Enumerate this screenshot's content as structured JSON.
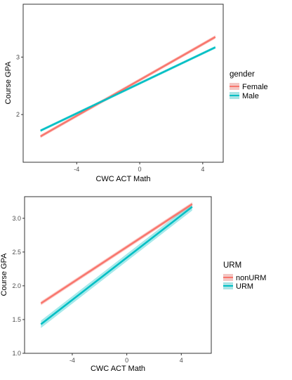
{
  "chart_data": [
    {
      "type": "line",
      "xlabel": "CWC ACT Math",
      "ylabel": "Course GPA",
      "xlim": [
        -7.4,
        5.3
      ],
      "ylim": [
        1.17,
        3.92
      ],
      "x_ticks": [
        -4,
        0,
        4
      ],
      "x_tick_labels": [
        "-4",
        "0",
        "4"
      ],
      "y_ticks": [
        2,
        3
      ],
      "y_tick_labels": [
        "2",
        "3"
      ],
      "grid": false,
      "legend": {
        "title": "gender",
        "position": "right"
      },
      "series": [
        {
          "name": "Female",
          "color": "#F8766D",
          "x": [
            -6.3,
            4.8
          ],
          "y": [
            1.62,
            3.35
          ],
          "band": 0.03
        },
        {
          "name": "Male",
          "color": "#00BFC4",
          "x": [
            -6.3,
            4.8
          ],
          "y": [
            1.72,
            3.17
          ],
          "band": 0.025
        }
      ]
    },
    {
      "type": "line",
      "xlabel": "CWC ACT Math",
      "ylabel": "Course GPA",
      "xlim": [
        -7.5,
        6.2
      ],
      "ylim": [
        1.0,
        3.32
      ],
      "x_ticks": [
        -4,
        0,
        4
      ],
      "x_tick_labels": [
        "-4",
        "0",
        "4"
      ],
      "y_ticks": [
        1.0,
        1.5,
        2.0,
        2.5,
        3.0
      ],
      "y_tick_labels": [
        "1.0",
        "1.5",
        "2.0",
        "2.5",
        "3.0"
      ],
      "grid": false,
      "legend": {
        "title": "URM",
        "position": "right"
      },
      "series": [
        {
          "name": "nonURM",
          "color": "#F8766D",
          "x": [
            -6.3,
            4.8
          ],
          "y": [
            1.74,
            3.21
          ],
          "band": 0.03
        },
        {
          "name": "URM",
          "color": "#00BFC4",
          "x": [
            -6.3,
            4.8
          ],
          "y": [
            1.43,
            3.17
          ],
          "band": 0.055
        }
      ]
    }
  ]
}
